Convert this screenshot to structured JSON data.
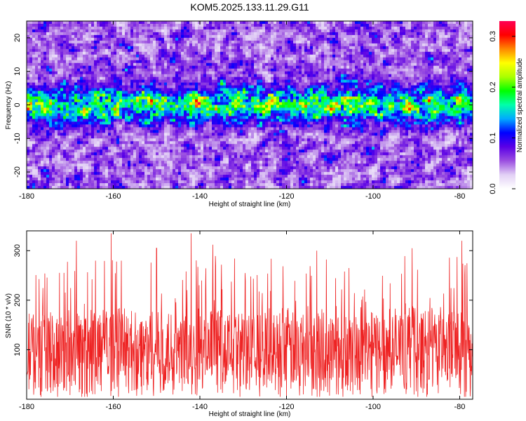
{
  "title": "KOM5.2025.133.11.29.G11",
  "chart_data": [
    {
      "type": "heatmap",
      "xlabel": "Height of straight line (km)",
      "ylabel": "Frequency (Hz)",
      "xlim": [
        -180,
        -77
      ],
      "ylim": [
        -25,
        25
      ],
      "xticks": [
        -180,
        -160,
        -140,
        -120,
        -100,
        -80
      ],
      "yticks": [
        -20,
        -10,
        0,
        10,
        20
      ],
      "colorbar": {
        "label": "Normalized spectral amplitude",
        "range": [
          0.0,
          0.33
        ],
        "ticks": [
          0.0,
          0.1,
          0.2,
          0.3
        ],
        "colormap": [
          "#ffffff",
          "#e2d0f5",
          "#9b4fe0",
          "#5a00e6",
          "#0000ff",
          "#00aaff",
          "#00ffaa",
          "#00ff00",
          "#aaff00",
          "#ffff00",
          "#ff8800",
          "#ff0000",
          "#ff0055"
        ]
      },
      "band": {
        "center_hz": 0,
        "halfwidth_hz": 5,
        "peak_amplitude": 0.3
      },
      "background_amplitude": 0.05
    },
    {
      "type": "line",
      "xlabel": "Height of straight line (km)",
      "ylabel": "SNR (10 * v/v)",
      "xlim": [
        -180,
        -77
      ],
      "ylim": [
        0,
        340
      ],
      "xticks": [
        -180,
        -160,
        -140,
        -120,
        -100,
        -80
      ],
      "yticks": [
        100,
        200,
        300
      ],
      "series_color": "#ee2222",
      "mean": 100,
      "min": 5,
      "max": 335,
      "peaks": [
        {
          "x": -160.5,
          "y": 335
        },
        {
          "x": -142,
          "y": 335
        },
        {
          "x": -168.5,
          "y": 320
        },
        {
          "x": -79.5,
          "y": 320
        },
        {
          "x": -91,
          "y": 305
        },
        {
          "x": -137,
          "y": 312
        },
        {
          "x": -113,
          "y": 300
        },
        {
          "x": -150,
          "y": 305
        }
      ]
    }
  ]
}
